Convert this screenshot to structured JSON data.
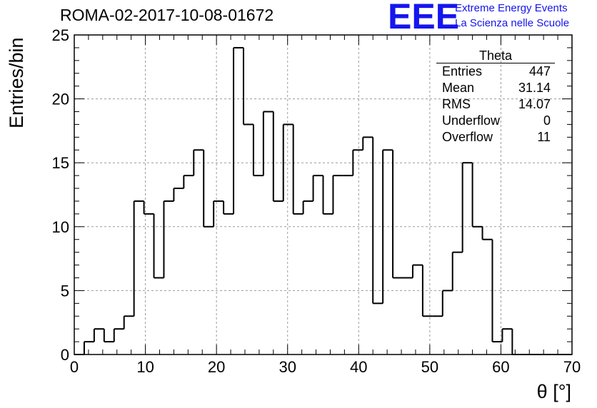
{
  "header": {
    "run_title": "ROMA-02-2017-10-08-01672",
    "logo_text": "EEE",
    "logo_line1": "Extreme Energy Events",
    "logo_line2": "La Scienza nelle Scuole"
  },
  "stats_box": {
    "title": "Theta",
    "rows": [
      {
        "label": "Entries",
        "value": "447"
      },
      {
        "label": "Mean",
        "value": "31.14"
      },
      {
        "label": "RMS",
        "value": "14.07"
      },
      {
        "label": "Underflow",
        "value": "0"
      },
      {
        "label": "Overflow",
        "value": "11"
      }
    ]
  },
  "colors": {
    "logo": "#1515ee",
    "line": "#000000",
    "grid": "#9a9a9a"
  },
  "chart_data": {
    "type": "bar",
    "style": "step-histogram",
    "xlabel": "θ [°]",
    "ylabel": "Entries/bin",
    "xlim": [
      0,
      70
    ],
    "ylim": [
      0,
      25
    ],
    "bin_width": 1.4,
    "bin_edges_start": 0,
    "values": [
      0,
      1,
      2,
      1,
      2,
      3,
      12,
      11,
      6,
      12,
      13,
      14,
      16,
      10,
      12,
      11,
      24,
      18,
      14,
      19,
      12,
      18,
      11,
      12,
      14,
      11,
      14,
      14,
      16,
      17,
      4,
      16,
      6,
      6,
      7,
      3,
      3,
      5,
      8,
      15,
      10,
      9,
      1,
      2,
      0,
      0,
      0,
      0,
      0,
      0
    ],
    "xticks": [
      0,
      10,
      20,
      30,
      40,
      50,
      60,
      70
    ],
    "yticks": [
      0,
      5,
      10,
      15,
      20,
      25
    ],
    "grid": true
  }
}
